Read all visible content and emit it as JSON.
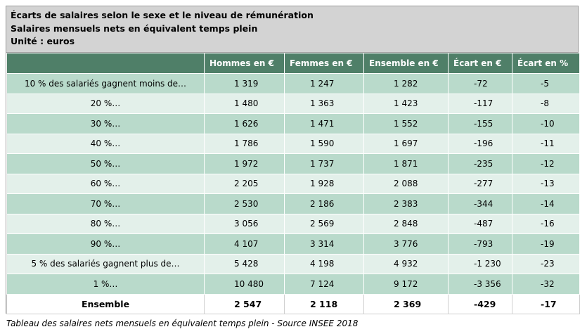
{
  "title": {
    "line1": "Écarts de salaires selon le sexe et le niveau de rémunération",
    "line2": "Salaires mensuels nets en équivalent temps plein",
    "line3": "Unité : euros"
  },
  "table": {
    "columns": [
      "",
      "Hommes en €",
      "Femmes en €",
      "Ensemble en €",
      "Écart en €",
      "Écart en %"
    ],
    "rows": [
      [
        "10 % des salariés gagnent moins de…",
        "1 319",
        "1 247",
        "1 282",
        "-72",
        "-5"
      ],
      [
        "20 %…",
        "1 480",
        "1 363",
        "1 423",
        "-117",
        "-8"
      ],
      [
        "30 %…",
        "1 626",
        "1 471",
        "1 552",
        "-155",
        "-10"
      ],
      [
        "40 %…",
        "1 786",
        "1 590",
        "1 697",
        "-196",
        "-11"
      ],
      [
        "50 %…",
        "1 972",
        "1 737",
        "1 871",
        "-235",
        "-12"
      ],
      [
        "60 %…",
        "2 205",
        "1 928",
        "2 088",
        "-277",
        "-13"
      ],
      [
        "70 %…",
        "2 530",
        "2 186",
        "2 383",
        "-344",
        "-14"
      ],
      [
        "80 %…",
        "3 056",
        "2 569",
        "2 848",
        "-487",
        "-16"
      ],
      [
        "90 %…",
        "4 107",
        "3 314",
        "3 776",
        "-793",
        "-19"
      ],
      [
        "5 % des salariés gagnent plus de…",
        "5 428",
        "4 198",
        "4 932",
        "-1 230",
        "-23"
      ],
      [
        "1 %…",
        "10 480",
        "7 124",
        "9 172",
        "-3 356",
        "-32"
      ]
    ],
    "total": [
      "Ensemble",
      "2 547",
      "2 118",
      "2 369",
      "-429",
      "-17"
    ]
  },
  "caption": "Tableau des salaires nets mensuels en équivalent temps plein - Source INSEE 2018",
  "colors": {
    "header_bg": "#4f7f68",
    "row_dark": "#b9dacb",
    "row_light": "#e3f0ea",
    "title_bg": "#d3d3d3"
  }
}
